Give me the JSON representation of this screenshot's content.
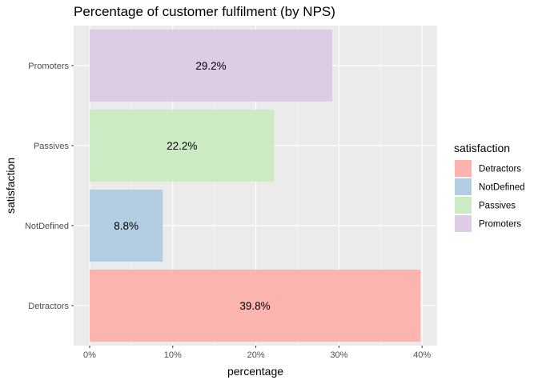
{
  "chart_data": {
    "type": "bar",
    "orientation": "horizontal",
    "title": "Percentage of customer fulfilment (by NPS)",
    "xlabel": "percentage",
    "ylabel": "satisfaction",
    "xlim": [
      0,
      40
    ],
    "x_ticks": [
      0,
      10,
      20,
      30,
      40
    ],
    "x_tick_labels": [
      "0%",
      "10%",
      "20%",
      "30%",
      "40%"
    ],
    "categories": [
      "Detractors",
      "NotDefined",
      "Passives",
      "Promoters"
    ],
    "values": [
      39.8,
      8.8,
      22.2,
      29.2
    ],
    "data_labels": [
      "39.8%",
      "8.8%",
      "22.2%",
      "29.2%"
    ],
    "colors": [
      "#FBB4AE",
      "#B3CDE3",
      "#CCEBC5",
      "#DECBE4"
    ],
    "grid": true,
    "legend": {
      "title": "satisfaction",
      "position": "right",
      "entries": [
        "Detractors",
        "NotDefined",
        "Passives",
        "Promoters"
      ]
    }
  }
}
